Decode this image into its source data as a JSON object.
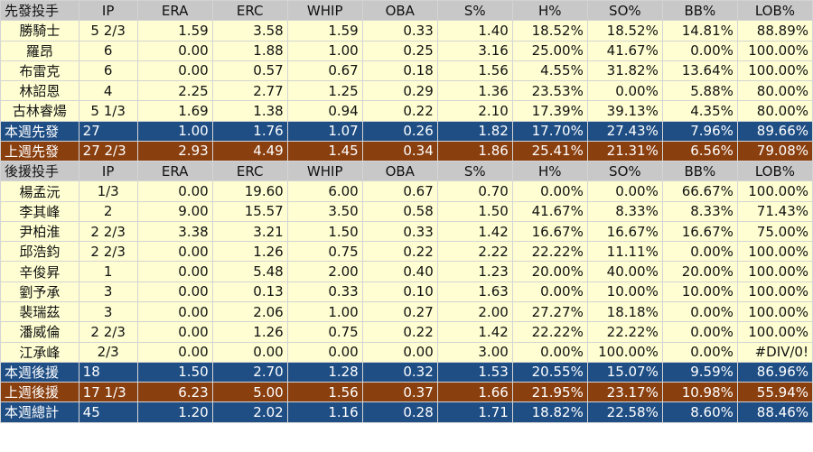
{
  "starters": {
    "header": [
      "先發投手",
      "IP",
      "ERA",
      "ERC",
      "WHIP",
      "OBA",
      "S%",
      "H%",
      "SO%",
      "BB%",
      "LOB%"
    ],
    "rows": [
      [
        "勝騎士",
        "5 2/3",
        "1.59",
        "3.58",
        "1.59",
        "0.33",
        "1.40",
        "18.52%",
        "18.52%",
        "14.81%",
        "88.89%"
      ],
      [
        "羅昂",
        "6",
        "0.00",
        "1.88",
        "1.00",
        "0.25",
        "3.16",
        "25.00%",
        "41.67%",
        "0.00%",
        "100.00%"
      ],
      [
        "布雷克",
        "6",
        "0.00",
        "0.57",
        "0.67",
        "0.18",
        "1.56",
        "4.55%",
        "31.82%",
        "13.64%",
        "100.00%"
      ],
      [
        "林詔恩",
        "4",
        "2.25",
        "2.77",
        "1.25",
        "0.29",
        "1.36",
        "23.53%",
        "0.00%",
        "5.88%",
        "80.00%"
      ],
      [
        "古林睿煬",
        "5 1/3",
        "1.69",
        "1.38",
        "0.94",
        "0.22",
        "2.10",
        "17.39%",
        "39.13%",
        "4.35%",
        "80.00%"
      ]
    ],
    "this_week": [
      "本週先發",
      "27",
      "1.00",
      "1.76",
      "1.07",
      "0.26",
      "1.82",
      "17.70%",
      "27.43%",
      "7.96%",
      "89.66%"
    ],
    "last_week": [
      "上週先發",
      "27 2/3",
      "2.93",
      "4.49",
      "1.45",
      "0.34",
      "1.86",
      "25.41%",
      "21.31%",
      "6.56%",
      "79.08%"
    ]
  },
  "relievers": {
    "header": [
      "後援投手",
      "IP",
      "ERA",
      "ERC",
      "WHIP",
      "OBA",
      "S%",
      "H%",
      "SO%",
      "BB%",
      "LOB%"
    ],
    "rows": [
      [
        "楊孟沅",
        "1/3",
        "0.00",
        "19.60",
        "6.00",
        "0.67",
        "0.70",
        "0.00%",
        "0.00%",
        "66.67%",
        "100.00%"
      ],
      [
        "李其峰",
        "2",
        "9.00",
        "15.57",
        "3.50",
        "0.58",
        "1.50",
        "41.67%",
        "8.33%",
        "8.33%",
        "71.43%"
      ],
      [
        "尹柏淮",
        "2 2/3",
        "3.38",
        "3.21",
        "1.50",
        "0.33",
        "1.42",
        "16.67%",
        "16.67%",
        "16.67%",
        "75.00%"
      ],
      [
        "邱浩鈞",
        "2 2/3",
        "0.00",
        "1.26",
        "0.75",
        "0.22",
        "2.22",
        "22.22%",
        "11.11%",
        "0.00%",
        "100.00%"
      ],
      [
        "辛俊昇",
        "1",
        "0.00",
        "5.48",
        "2.00",
        "0.40",
        "1.23",
        "20.00%",
        "40.00%",
        "20.00%",
        "100.00%"
      ],
      [
        "劉予承",
        "3",
        "0.00",
        "0.13",
        "0.33",
        "0.10",
        "1.63",
        "0.00%",
        "10.00%",
        "10.00%",
        "100.00%"
      ],
      [
        "裴瑞茲",
        "3",
        "0.00",
        "2.06",
        "1.00",
        "0.27",
        "2.00",
        "27.27%",
        "18.18%",
        "0.00%",
        "100.00%"
      ],
      [
        "潘威倫",
        "2 2/3",
        "0.00",
        "1.26",
        "0.75",
        "0.22",
        "1.42",
        "22.22%",
        "22.22%",
        "0.00%",
        "100.00%"
      ],
      [
        "江承峰",
        "2/3",
        "0.00",
        "0.00",
        "0.00",
        "0.00",
        "3.00",
        "0.00%",
        "100.00%",
        "0.00%",
        "#DIV/0!"
      ]
    ],
    "this_week": [
      "本週後援",
      "18",
      "1.50",
      "2.70",
      "1.28",
      "0.32",
      "1.53",
      "20.55%",
      "15.07%",
      "9.59%",
      "86.96%"
    ],
    "last_week": [
      "上週後援",
      "17 1/3",
      "6.23",
      "5.00",
      "1.56",
      "0.37",
      "1.66",
      "21.95%",
      "23.17%",
      "10.98%",
      "55.94%"
    ]
  },
  "week_total": [
    "本週總計",
    "45",
    "1.20",
    "2.02",
    "1.16",
    "0.28",
    "1.71",
    "18.82%",
    "22.58%",
    "8.60%",
    "88.46%"
  ],
  "colors": {
    "row_bg": "#fefed2",
    "header_bg": "#c8c8c8",
    "this_week_bg": "#1f4e84",
    "last_week_bg": "#8a3f0f"
  }
}
